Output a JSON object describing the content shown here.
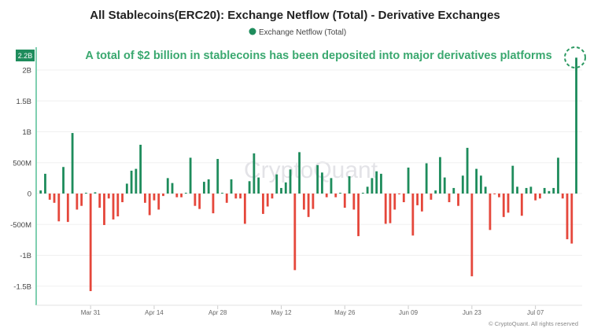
{
  "chart_data": {
    "type": "bar",
    "title": "All Stablecoins(ERC20): Exchange Netflow (Total) - Derivative Exchanges",
    "legend": [
      {
        "name": "Exchange Netflow (Total)",
        "color": "#1e8c5c",
        "placement": "top-center"
      }
    ],
    "annotation": "A total of $2 billion in stablecoins has been deposited into major derivatives platforms",
    "watermark": "CryptoQuant",
    "copyright": "© CryptoQuant. All rights reserved",
    "unit": "billions USD",
    "start_date": "Mar 20",
    "interval": "daily",
    "ylim": [
      -1.6,
      2.3
    ],
    "y_ticks": [
      {
        "value": 2,
        "label": "2B"
      },
      {
        "value": 1.5,
        "label": "1.5B"
      },
      {
        "value": 1,
        "label": "1B"
      },
      {
        "value": 0.5,
        "label": "500M"
      },
      {
        "value": 0,
        "label": "0"
      },
      {
        "value": -0.5,
        "label": "-500M"
      },
      {
        "value": -1,
        "label": "-1B"
      },
      {
        "value": -1.5,
        "label": "-1.5B"
      }
    ],
    "last_value_label": "2.2B",
    "x_ticks": [
      {
        "index": 11,
        "label": "Mar 31"
      },
      {
        "index": 25,
        "label": "Apr 14"
      },
      {
        "index": 39,
        "label": "Apr 28"
      },
      {
        "index": 53,
        "label": "May 12"
      },
      {
        "index": 67,
        "label": "May 26"
      },
      {
        "index": 81,
        "label": "Jun 09"
      },
      {
        "index": 95,
        "label": "Jun 23"
      },
      {
        "index": 109,
        "label": "Jul 07"
      }
    ],
    "positive_color": "#1e8c5c",
    "negative_color": "#e5473b",
    "values": [
      0.05,
      0.32,
      -0.1,
      -0.15,
      -0.45,
      0.43,
      -0.46,
      0.98,
      -0.26,
      -0.2,
      0,
      -1.58,
      0.02,
      -0.23,
      -0.51,
      -0.08,
      -0.42,
      -0.37,
      -0.14,
      0.16,
      0.37,
      0.4,
      0.79,
      -0.15,
      -0.35,
      -0.11,
      -0.26,
      -0.04,
      0.25,
      0.17,
      -0.06,
      -0.06,
      0,
      0.58,
      -0.2,
      -0.25,
      0.19,
      0.23,
      -0.32,
      0.56,
      0,
      -0.15,
      0.23,
      -0.08,
      -0.08,
      -0.49,
      0.2,
      0.65,
      0.26,
      -0.33,
      -0.21,
      -0.08,
      0.31,
      0.09,
      0.18,
      0.39,
      -1.24,
      0.67,
      -0.26,
      -0.38,
      -0.25,
      0.46,
      0.34,
      -0.06,
      0.25,
      -0.06,
      0,
      -0.23,
      0.28,
      -0.26,
      -0.69,
      0,
      0.11,
      0.25,
      0.36,
      0.32,
      -0.49,
      -0.48,
      -0.26,
      -0.01,
      -0.14,
      0.42,
      -0.68,
      -0.19,
      -0.29,
      0.49,
      -0.1,
      0.05,
      0.59,
      0.26,
      -0.14,
      0.09,
      -0.2,
      0.29,
      0.74,
      -1.34,
      0.4,
      0.29,
      0.11,
      -0.59,
      -0.01,
      -0.06,
      -0.38,
      -0.31,
      0.45,
      0.11,
      -0.36,
      0.09,
      0.11,
      -0.11,
      -0.08,
      0.09,
      0.04,
      0.09,
      0.58,
      -0.08,
      -0.74,
      -0.81,
      2.2
    ]
  }
}
